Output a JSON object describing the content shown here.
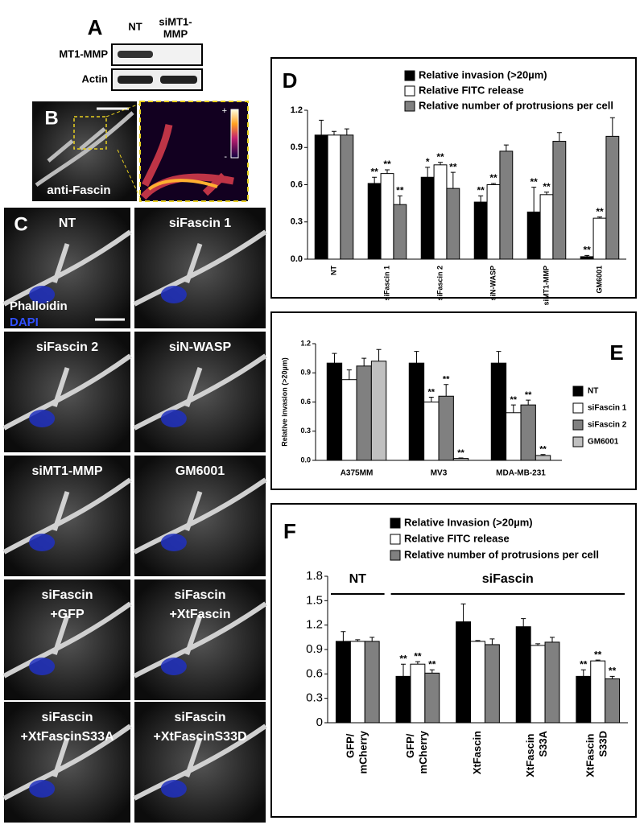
{
  "blot": {
    "panel": "A",
    "columns": [
      "NT",
      "siMT1-MMP"
    ],
    "rows": [
      "MT1-MMP",
      "Actin"
    ]
  },
  "images": {
    "panel_b": "B",
    "b_caption": "anti-Fascin",
    "colorbar": [
      "+",
      "-"
    ],
    "panel_c": "C",
    "phalloidin": "Phalloidin",
    "dapi": "DAPI",
    "tiles": [
      [
        "NT"
      ],
      [
        "siFascin 1"
      ],
      [
        "siFascin 2"
      ],
      [
        "siN-WASP"
      ],
      [
        "siMT1-MMP"
      ],
      [
        "GM6001"
      ],
      [
        "siFascin",
        "+GFP"
      ],
      [
        "siFascin",
        "+XtFascin"
      ],
      [
        "siFascin",
        "+XtFascinS33A"
      ],
      [
        "siFascin",
        "+XtFascinS33D"
      ]
    ]
  },
  "chart_data": [
    {
      "type": "bar",
      "panel": "D",
      "legend": "top",
      "categories": [
        "NT",
        "siFascin 1",
        "siFascin 2",
        "siN-WASP",
        "siMT1-MMP",
        "GM6001"
      ],
      "ylim": [
        0,
        1.2
      ],
      "yticks": [
        {
          "value": 0,
          "label": "0.0"
        },
        0.3,
        0.6,
        0.9,
        1.2
      ],
      "series": [
        {
          "name": "Relative invasion (>20µm)",
          "color": "#000000",
          "values": [
            1.0,
            0.61,
            0.66,
            0.46,
            0.38,
            0.02
          ],
          "errors": [
            0.12,
            0.05,
            0.08,
            0.05,
            0.2,
            0.01
          ],
          "sig": [
            null,
            "**",
            "*",
            "**",
            "**",
            "**"
          ]
        },
        {
          "name": "Relative FITC release",
          "color": "#ffffff",
          "values": [
            1.0,
            0.69,
            0.76,
            0.6,
            0.52,
            0.33
          ],
          "errors": [
            0.03,
            0.03,
            0.02,
            0.01,
            0.02,
            0.01
          ],
          "sig": [
            null,
            "**",
            "**",
            "**",
            "**",
            "**"
          ]
        },
        {
          "name": "Relative number of protrusions per cell",
          "color": "#808080",
          "values": [
            1.0,
            0.44,
            0.57,
            0.87,
            0.95,
            0.99
          ],
          "errors": [
            0.05,
            0.07,
            0.13,
            0.05,
            0.07,
            0.15
          ],
          "sig": [
            null,
            "**",
            "**",
            null,
            null,
            null
          ]
        }
      ]
    },
    {
      "type": "bar",
      "panel": "E",
      "legend": "right",
      "ylabel": "Relative invasion (>20µm)",
      "categories": [
        "A375MM",
        "MV3",
        "MDA-MB-231"
      ],
      "ylim": [
        0,
        1.2
      ],
      "yticks": [
        {
          "value": 0,
          "label": "0.0"
        },
        0.3,
        0.6,
        0.9,
        1.2
      ],
      "series": [
        {
          "name": "NT",
          "color": "#000000",
          "values": [
            1.0,
            1.0,
            1.0
          ],
          "errors": [
            0.1,
            0.12,
            0.12
          ],
          "sig": [
            null,
            null,
            null
          ]
        },
        {
          "name": "siFascin 1",
          "color": "#ffffff",
          "values": [
            0.83,
            0.6,
            0.49
          ],
          "errors": [
            0.1,
            0.05,
            0.08
          ],
          "sig": [
            null,
            "**",
            "**"
          ]
        },
        {
          "name": "siFascin 2",
          "color": "#808080",
          "values": [
            0.97,
            0.66,
            0.57
          ],
          "errors": [
            0.08,
            0.12,
            0.05
          ],
          "sig": [
            null,
            "**",
            "**"
          ]
        },
        {
          "name": "GM6001",
          "color": "#c0c0c0",
          "values": [
            1.02,
            0.02,
            0.05
          ],
          "errors": [
            0.12,
            0.005,
            0.01
          ],
          "sig": [
            null,
            "**",
            "**"
          ]
        }
      ]
    },
    {
      "type": "bar",
      "panel": "F",
      "legend": "top",
      "groups": [
        "NT",
        "siFascin"
      ],
      "categories": [
        "GFP/ mCherry",
        "GFP/ mCherry",
        "XtFascin",
        "XtFascin S33A",
        "XtFascin S33D"
      ],
      "ylim": [
        0,
        1.8
      ],
      "yticks": [
        0,
        0.3,
        0.6,
        0.9,
        1.2,
        1.5,
        1.8
      ],
      "series": [
        {
          "name": "Relative Invasion (>20µm)",
          "color": "#000000",
          "values": [
            1.0,
            0.57,
            1.24,
            1.18,
            0.57
          ],
          "errors": [
            0.12,
            0.15,
            0.22,
            0.1,
            0.08
          ],
          "sig": [
            null,
            "**",
            null,
            null,
            "**"
          ]
        },
        {
          "name": "Relative FITC release",
          "color": "#ffffff",
          "values": [
            1.0,
            0.72,
            1.0,
            0.95,
            0.76
          ],
          "errors": [
            0.02,
            0.03,
            0.01,
            0.02,
            0.01
          ],
          "sig": [
            null,
            "**",
            null,
            null,
            "**"
          ]
        },
        {
          "name": "Relative number of protrusions per cell",
          "color": "#808080",
          "values": [
            1.0,
            0.61,
            0.96,
            0.99,
            0.54
          ],
          "errors": [
            0.05,
            0.04,
            0.07,
            0.06,
            0.03
          ],
          "sig": [
            null,
            "**",
            null,
            null,
            "**"
          ]
        }
      ]
    }
  ]
}
